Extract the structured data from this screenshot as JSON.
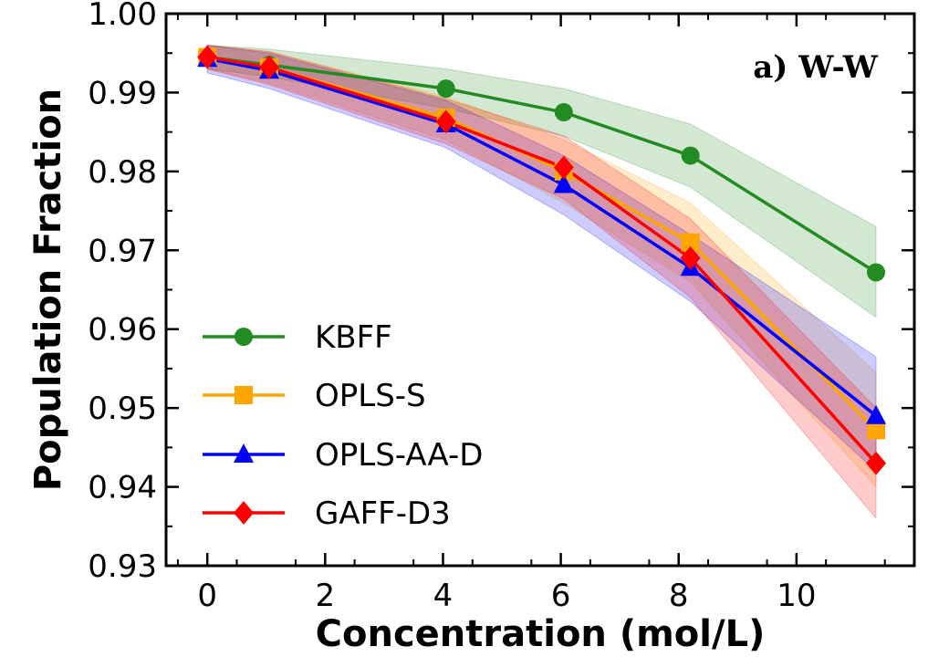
{
  "chart_data": {
    "type": "line",
    "title": "",
    "panel_label": "a) W-W",
    "xlabel": "Concentration (mol/L)",
    "ylabel": "Population Fraction",
    "xlim": [
      -0.7,
      12.0
    ],
    "ylim": [
      0.93,
      1.0
    ],
    "xticks": [
      0,
      2,
      4,
      6,
      8,
      10
    ],
    "yticks": [
      0.93,
      0.94,
      0.95,
      0.96,
      0.97,
      0.98,
      0.99,
      1.0
    ],
    "ytick_labels": [
      "0.93",
      "0.94",
      "0.95",
      "0.96",
      "0.97",
      "0.98",
      "0.99",
      "1.00"
    ],
    "grid": false,
    "legend_position": "lower-left",
    "x": [
      0,
      1.05,
      4.05,
      6.05,
      8.2,
      11.35
    ],
    "series": [
      {
        "name": "KBFF",
        "color": "#228b22",
        "marker": "circle",
        "values": [
          0.9945,
          0.9935,
          0.9905,
          0.9875,
          0.982,
          0.9672
        ],
        "lower": [
          0.993,
          0.992,
          0.988,
          0.9845,
          0.978,
          0.9615
        ],
        "upper": [
          0.996,
          0.9955,
          0.993,
          0.9905,
          0.986,
          0.973
        ]
      },
      {
        "name": "OPLS-S",
        "color": "#ffa500",
        "marker": "square",
        "values": [
          0.9945,
          0.9932,
          0.9868,
          0.98,
          0.971,
          0.9472
        ],
        "lower": [
          0.993,
          0.9912,
          0.984,
          0.976,
          0.966,
          0.94
        ],
        "upper": [
          0.996,
          0.9952,
          0.9895,
          0.984,
          0.976,
          0.9545
        ]
      },
      {
        "name": "OPLS-AA-D",
        "color": "#0000ff",
        "marker": "triangle",
        "values": [
          0.9943,
          0.9928,
          0.986,
          0.9783,
          0.9678,
          0.949
        ],
        "lower": [
          0.9925,
          0.9905,
          0.983,
          0.9745,
          0.9635,
          0.942
        ],
        "upper": [
          0.996,
          0.995,
          0.989,
          0.982,
          0.972,
          0.9565
        ]
      },
      {
        "name": "GAFF-D3",
        "color": "#ff0000",
        "marker": "diamond",
        "values": [
          0.9945,
          0.9932,
          0.9863,
          0.9805,
          0.969,
          0.943
        ],
        "lower": [
          0.993,
          0.991,
          0.9835,
          0.9765,
          0.964,
          0.936
        ],
        "upper": [
          0.996,
          0.9952,
          0.9892,
          0.9845,
          0.974,
          0.95
        ]
      }
    ]
  }
}
